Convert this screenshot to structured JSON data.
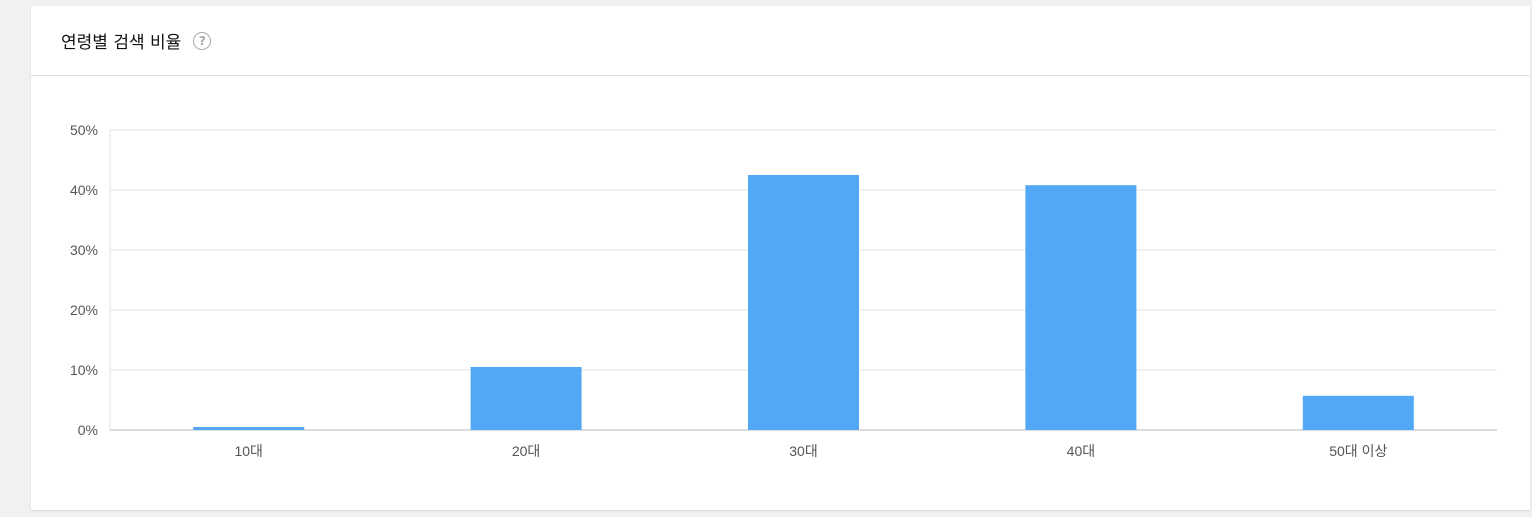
{
  "header": {
    "title": "연령별 검색 비율",
    "help_icon": "question-circle-icon"
  },
  "chart_data": {
    "type": "bar",
    "title": "",
    "xlabel": "",
    "ylabel": "",
    "categories": [
      "10대",
      "20대",
      "30대",
      "40대",
      "50대 이상"
    ],
    "values": [
      0.5,
      10.5,
      42.5,
      40.8,
      5.7
    ],
    "ylim": [
      0,
      50
    ],
    "yticks": [
      0,
      10,
      20,
      30,
      40,
      50
    ],
    "ytick_labels": [
      "0%",
      "10%",
      "20%",
      "30%",
      "40%",
      "50%"
    ],
    "grid": true,
    "bar_color": "#52a8f4"
  }
}
